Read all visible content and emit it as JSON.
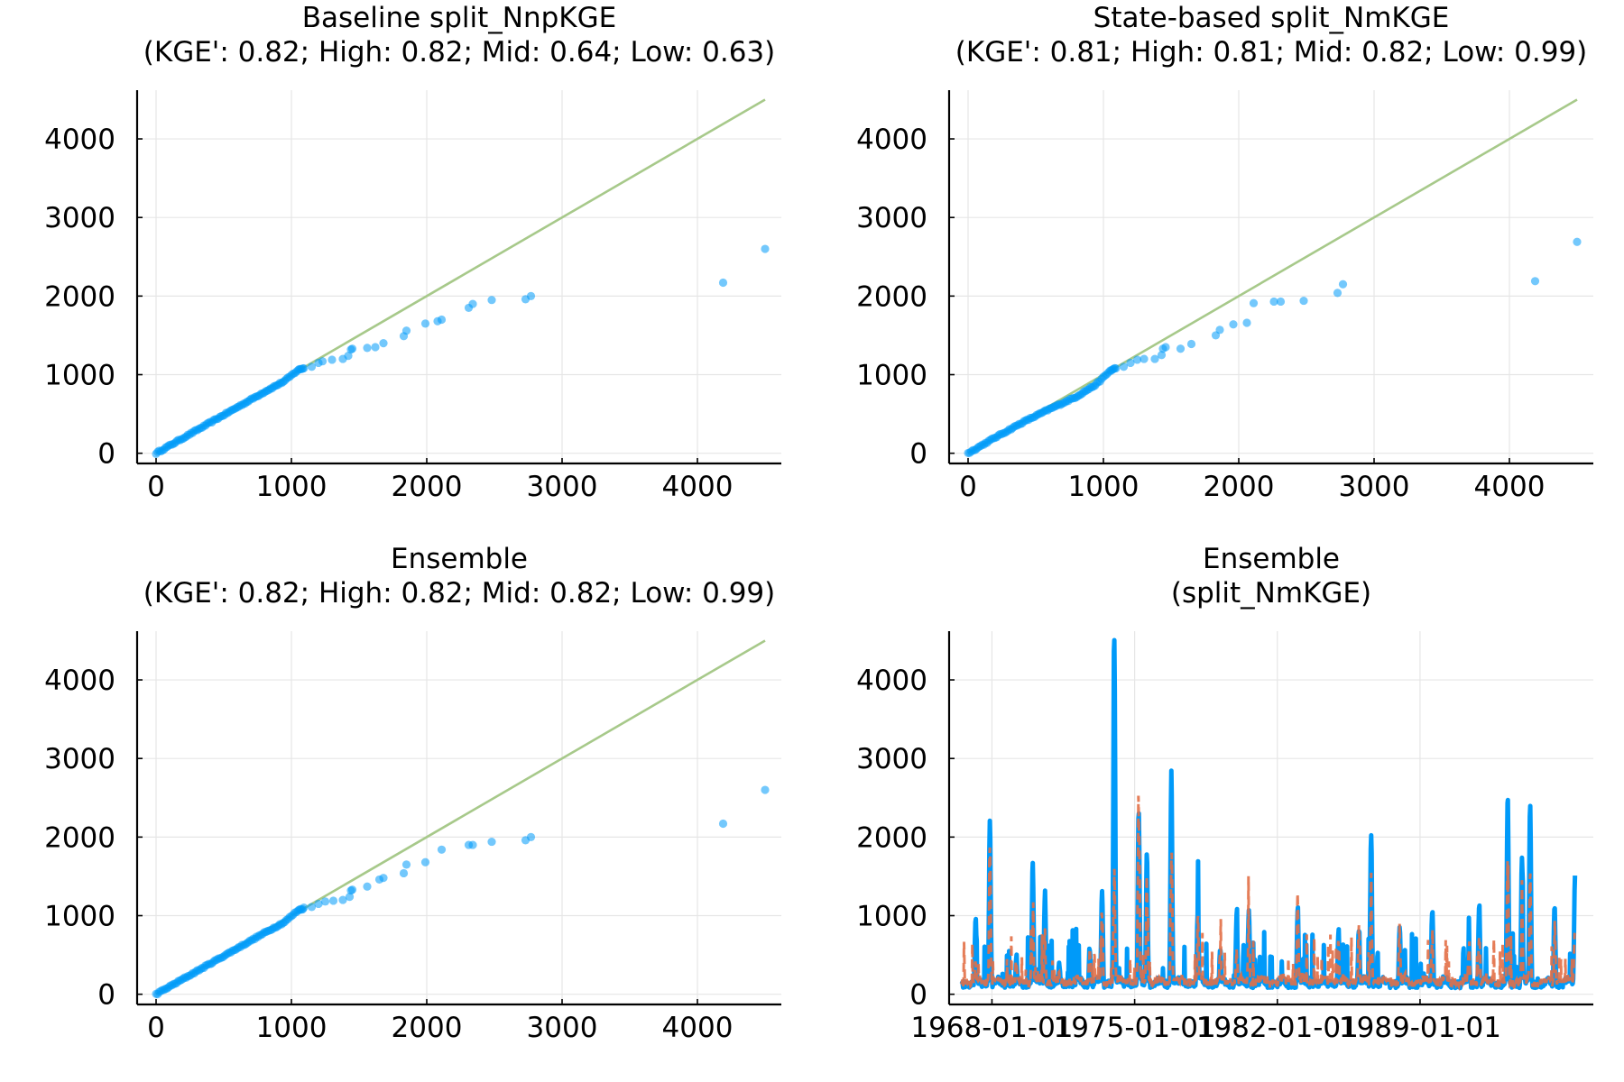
{
  "figure": {
    "background": "#ffffff"
  },
  "colors": {
    "blue": "#009af9",
    "orange": "#e26f46",
    "green": "#a7c98a"
  },
  "chart_data": [
    {
      "id": "p1",
      "type": "scatter",
      "title": [
        "Baseline split_NnpKGE",
        "(KGE': 0.82; High: 0.82; Mid: 0.64; Low: 0.63)"
      ],
      "xlim": [
        -140,
        4620
      ],
      "ylim": [
        -130,
        4620
      ],
      "xticks": [
        0,
        1000,
        2000,
        3000,
        4000
      ],
      "yticks": [
        0,
        1000,
        2000,
        3000,
        4000
      ],
      "xtick_labels": [
        "0",
        "1000",
        "2000",
        "3000",
        "4000"
      ],
      "ytick_labels": [
        "0",
        "1000",
        "2000",
        "3000",
        "4000"
      ],
      "grid": true,
      "reference_line": {
        "x": [
          0,
          4500
        ],
        "y": [
          0,
          4500
        ]
      },
      "dense_trend": [
        [
          0,
          0
        ],
        [
          200,
          195
        ],
        [
          400,
          390
        ],
        [
          600,
          585
        ],
        [
          800,
          780
        ],
        [
          950,
          920
        ],
        [
          1050,
          1060
        ],
        [
          1100,
          1090
        ]
      ],
      "points": [
        [
          1150,
          1100
        ],
        [
          1200,
          1150
        ],
        [
          1230,
          1170
        ],
        [
          1300,
          1190
        ],
        [
          1380,
          1200
        ],
        [
          1420,
          1240
        ],
        [
          1440,
          1320
        ],
        [
          1450,
          1330
        ],
        [
          1560,
          1340
        ],
        [
          1620,
          1350
        ],
        [
          1680,
          1400
        ],
        [
          1830,
          1490
        ],
        [
          1850,
          1560
        ],
        [
          1990,
          1650
        ],
        [
          2080,
          1680
        ],
        [
          2110,
          1700
        ],
        [
          2310,
          1850
        ],
        [
          2340,
          1900
        ],
        [
          2480,
          1950
        ],
        [
          2730,
          1960
        ],
        [
          2770,
          2000
        ],
        [
          4190,
          2170
        ],
        [
          4500,
          2600
        ]
      ]
    },
    {
      "id": "p2",
      "type": "scatter",
      "title": [
        "State-based split_NmKGE",
        "(KGE': 0.81; High: 0.81; Mid: 0.82; Low: 0.99)"
      ],
      "xlim": [
        -140,
        4620
      ],
      "ylim": [
        -130,
        4620
      ],
      "xticks": [
        0,
        1000,
        2000,
        3000,
        4000
      ],
      "yticks": [
        0,
        1000,
        2000,
        3000,
        4000
      ],
      "xtick_labels": [
        "0",
        "1000",
        "2000",
        "3000",
        "4000"
      ],
      "ytick_labels": [
        "0",
        "1000",
        "2000",
        "3000",
        "4000"
      ],
      "grid": true,
      "reference_line": {
        "x": [
          0,
          4500
        ],
        "y": [
          0,
          4500
        ]
      },
      "dense_trend": [
        [
          0,
          0
        ],
        [
          200,
          200
        ],
        [
          400,
          390
        ],
        [
          600,
          560
        ],
        [
          800,
          720
        ],
        [
          950,
          880
        ],
        [
          1050,
          1050
        ],
        [
          1100,
          1090
        ]
      ],
      "points": [
        [
          1150,
          1100
        ],
        [
          1200,
          1150
        ],
        [
          1250,
          1190
        ],
        [
          1300,
          1200
        ],
        [
          1380,
          1200
        ],
        [
          1430,
          1250
        ],
        [
          1440,
          1330
        ],
        [
          1460,
          1350
        ],
        [
          1570,
          1330
        ],
        [
          1650,
          1390
        ],
        [
          1830,
          1500
        ],
        [
          1860,
          1570
        ],
        [
          1960,
          1640
        ],
        [
          2060,
          1660
        ],
        [
          2110,
          1910
        ],
        [
          2260,
          1930
        ],
        [
          2310,
          1930
        ],
        [
          2480,
          1940
        ],
        [
          2730,
          2040
        ],
        [
          2770,
          2150
        ],
        [
          4190,
          2190
        ],
        [
          4500,
          2690
        ]
      ]
    },
    {
      "id": "p3",
      "type": "scatter",
      "title": [
        "Ensemble",
        "(KGE': 0.82; High: 0.82; Mid: 0.82; Low: 0.99)"
      ],
      "xlim": [
        -140,
        4620
      ],
      "ylim": [
        -130,
        4620
      ],
      "xticks": [
        0,
        1000,
        2000,
        3000,
        4000
      ],
      "yticks": [
        0,
        1000,
        2000,
        3000,
        4000
      ],
      "xtick_labels": [
        "0",
        "1000",
        "2000",
        "3000",
        "4000"
      ],
      "ytick_labels": [
        "0",
        "1000",
        "2000",
        "3000",
        "4000"
      ],
      "grid": true,
      "reference_line": {
        "x": [
          0,
          4500
        ],
        "y": [
          0,
          4500
        ]
      },
      "dense_trend": [
        [
          0,
          0
        ],
        [
          200,
          195
        ],
        [
          400,
          390
        ],
        [
          600,
          585
        ],
        [
          800,
          780
        ],
        [
          950,
          920
        ],
        [
          1050,
          1070
        ],
        [
          1100,
          1100
        ]
      ],
      "points": [
        [
          1150,
          1110
        ],
        [
          1200,
          1150
        ],
        [
          1250,
          1180
        ],
        [
          1310,
          1190
        ],
        [
          1380,
          1200
        ],
        [
          1430,
          1240
        ],
        [
          1440,
          1320
        ],
        [
          1450,
          1330
        ],
        [
          1560,
          1370
        ],
        [
          1650,
          1460
        ],
        [
          1680,
          1480
        ],
        [
          1830,
          1540
        ],
        [
          1850,
          1650
        ],
        [
          1990,
          1680
        ],
        [
          2110,
          1840
        ],
        [
          2310,
          1900
        ],
        [
          2340,
          1900
        ],
        [
          2480,
          1940
        ],
        [
          2730,
          1960
        ],
        [
          2770,
          2000
        ],
        [
          4190,
          2170
        ],
        [
          4500,
          2600
        ]
      ]
    },
    {
      "id": "p4",
      "type": "line",
      "title": [
        "Ensemble",
        "(split_NmKGE)"
      ],
      "xlim": [
        1965.9,
        1997.5
      ],
      "ylim": [
        -130,
        4620
      ],
      "xticks": [
        1968,
        1975,
        1982,
        1989
      ],
      "yticks": [
        0,
        1000,
        2000,
        3000,
        4000
      ],
      "xtick_labels": [
        "1968-01-01",
        "1975-01-01",
        "1982-01-01",
        "1989-01-01"
      ],
      "ytick_labels": [
        "0",
        "1000",
        "2000",
        "3000",
        "4000"
      ],
      "grid": true,
      "x_range": [
        1966.5,
        1996.6
      ],
      "peaks": [
        [
          1967.2,
          880,
          400
        ],
        [
          1967.9,
          2100,
          1500
        ],
        [
          1969.2,
          420,
          450
        ],
        [
          1970.0,
          1620,
          800
        ],
        [
          1970.6,
          1250,
          700
        ],
        [
          1971.3,
          350,
          300
        ],
        [
          1972.8,
          550,
          700
        ],
        [
          1973.4,
          1220,
          900
        ],
        [
          1974.0,
          4500,
          1500
        ],
        [
          1975.2,
          2300,
          2560
        ],
        [
          1975.6,
          1700,
          1200
        ],
        [
          1976.8,
          2780,
          1800
        ],
        [
          1978.1,
          1050,
          800
        ],
        [
          1979.2,
          550,
          500
        ],
        [
          1980.0,
          900,
          600
        ],
        [
          1980.6,
          1020,
          800
        ],
        [
          1983.0,
          1050,
          1120
        ],
        [
          1985.0,
          750,
          600
        ],
        [
          1986.0,
          800,
          900
        ],
        [
          1986.6,
          2000,
          1200
        ],
        [
          1988.0,
          800,
          900
        ],
        [
          1989.6,
          1030,
          700
        ],
        [
          1991.4,
          530,
          600
        ],
        [
          1991.9,
          1100,
          900
        ],
        [
          1993.3,
          2500,
          1400
        ],
        [
          1994.0,
          1650,
          1000
        ],
        [
          1994.4,
          2340,
          1200
        ],
        [
          1995.6,
          1020,
          900
        ],
        [
          1996.6,
          1400,
          800
        ],
        [
          1997.0,
          1050,
          1080
        ],
        [
          1997.3,
          850,
          800
        ]
      ]
    }
  ]
}
